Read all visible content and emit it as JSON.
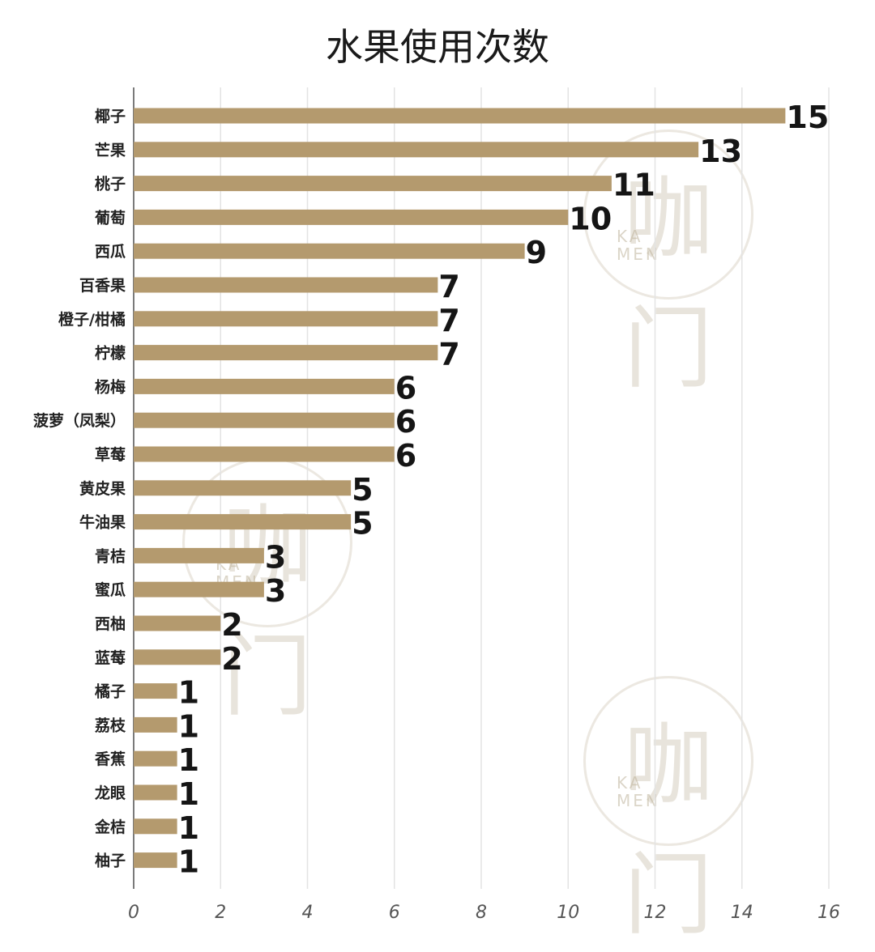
{
  "chart_data": {
    "type": "bar",
    "orientation": "horizontal",
    "title": "水果使用次数",
    "categories": [
      "椰子",
      "芒果",
      "桃子",
      "葡萄",
      "西瓜",
      "百香果",
      "橙子/柑橘",
      "柠檬",
      "杨梅",
      "菠萝（凤梨）",
      "草莓",
      "黄皮果",
      "牛油果",
      "青桔",
      "蜜瓜",
      "西柚",
      "蓝莓",
      "橘子",
      "荔枝",
      "香蕉",
      "龙眼",
      "金桔",
      "柚子"
    ],
    "values": [
      15,
      13,
      11,
      10,
      9,
      7,
      7,
      7,
      6,
      6,
      6,
      5,
      5,
      3,
      3,
      2,
      2,
      1,
      1,
      1,
      1,
      1,
      1
    ],
    "xlim": [
      0,
      16
    ],
    "x_ticks": [
      "0",
      "2",
      "4",
      "6",
      "8",
      "10",
      "12",
      "14",
      "16"
    ],
    "grid": "vertical",
    "bar_color": "#b49a6e",
    "data_labels": true
  },
  "watermark": {
    "glyph": "咖门",
    "text_line1": "KA",
    "text_line2": "MEN"
  }
}
